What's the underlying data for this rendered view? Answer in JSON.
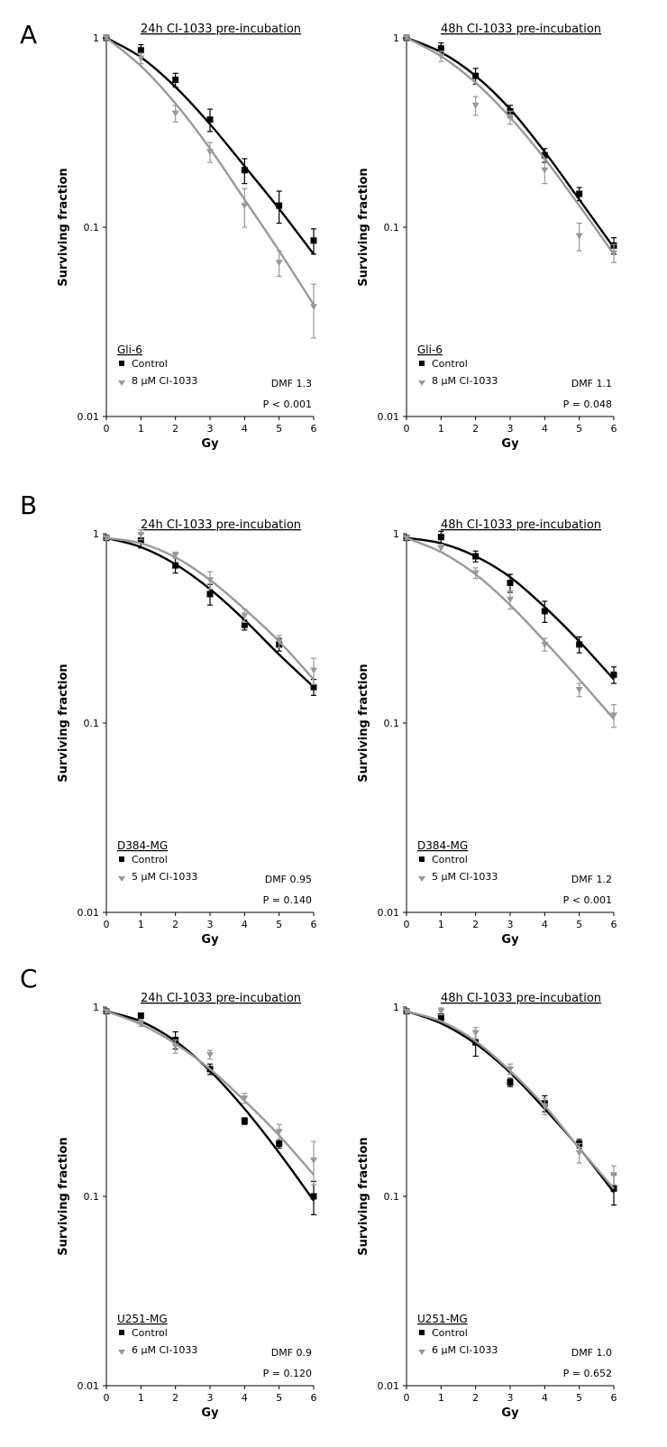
{
  "panels": [
    {
      "letter": "A",
      "y": 30
    },
    {
      "letter": "B",
      "y": 552
    },
    {
      "letter": "C",
      "y": 1077
    }
  ],
  "chart_data": [
    {
      "type": "scatter",
      "panel": "A",
      "title": "24h CI-1033 pre-incubation",
      "xlabel": "Gy",
      "ylabel": "Surviving fraction",
      "xlim": [
        0,
        6
      ],
      "ylim": [
        0.01,
        1
      ],
      "yscale": "log",
      "xticks": [
        "0",
        "1",
        "2",
        "3",
        "4",
        "5",
        "6"
      ],
      "yticks": [
        "1",
        "0.1",
        "0.01"
      ],
      "cell_line": "Gli-6",
      "series": [
        {
          "name": "Control",
          "color": "#000000",
          "marker": "square",
          "x": [
            0,
            1,
            2,
            3,
            4,
            5,
            6
          ],
          "y": [
            1.0,
            0.86,
            0.6,
            0.37,
            0.2,
            0.13,
            0.085
          ],
          "err": [
            0.02,
            0.06,
            0.05,
            0.05,
            0.03,
            0.025,
            0.013
          ],
          "fit": [
            1.0,
            0.79,
            0.55,
            0.35,
            0.21,
            0.125,
            0.072
          ]
        },
        {
          "name": "8 µM CI-1033",
          "color": "#999999",
          "marker": "triangle-down",
          "x": [
            0,
            1,
            2,
            3,
            4,
            5,
            6
          ],
          "y": [
            1.0,
            0.78,
            0.4,
            0.25,
            0.13,
            0.065,
            0.038
          ],
          "err": [
            0.02,
            0.05,
            0.04,
            0.03,
            0.03,
            0.01,
            0.012
          ],
          "fit": [
            1.0,
            0.71,
            0.45,
            0.26,
            0.14,
            0.075,
            0.039
          ]
        }
      ],
      "annotations": [
        "DMF 1.3",
        "P < 0.001"
      ]
    },
    {
      "type": "scatter",
      "panel": "A",
      "title": "48h CI-1033 pre-incubation",
      "xlabel": "Gy",
      "ylabel": "Surviving fraction",
      "xlim": [
        0,
        6
      ],
      "ylim": [
        0.01,
        1
      ],
      "yscale": "log",
      "xticks": [
        "0",
        "1",
        "2",
        "3",
        "4",
        "5",
        "6"
      ],
      "yticks": [
        "1",
        "0.1",
        "0.01"
      ],
      "cell_line": "Gli-6",
      "series": [
        {
          "name": "Control",
          "color": "#000000",
          "marker": "square",
          "x": [
            0,
            1,
            2,
            3,
            4,
            5,
            6
          ],
          "y": [
            1.0,
            0.88,
            0.63,
            0.41,
            0.24,
            0.15,
            0.08
          ],
          "err": [
            0.02,
            0.06,
            0.06,
            0.03,
            0.02,
            0.012,
            0.008
          ],
          "fit": [
            1.0,
            0.84,
            0.63,
            0.42,
            0.25,
            0.14,
            0.078
          ]
        },
        {
          "name": "8 µM CI-1033",
          "color": "#999999",
          "marker": "triangle-down",
          "x": [
            0,
            1,
            2,
            3,
            4,
            5,
            6
          ],
          "y": [
            1.0,
            0.8,
            0.44,
            0.38,
            0.2,
            0.09,
            0.073
          ],
          "err": [
            0.02,
            0.05,
            0.05,
            0.03,
            0.03,
            0.015,
            0.008
          ],
          "fit": [
            1.0,
            0.8,
            0.58,
            0.38,
            0.23,
            0.13,
            0.072
          ]
        }
      ],
      "annotations": [
        "DMF 1.1",
        "P = 0.048"
      ]
    },
    {
      "type": "scatter",
      "panel": "B",
      "title": "24h CI-1033 pre-incubation",
      "xlabel": "Gy",
      "ylabel": "Surviving fraction",
      "xlim": [
        0,
        6
      ],
      "ylim": [
        0.01,
        1
      ],
      "yscale": "log",
      "xticks": [
        "0",
        "1",
        "2",
        "3",
        "4",
        "5",
        "6"
      ],
      "yticks": [
        "1",
        "0.1",
        "0.01"
      ],
      "cell_line": "D384-MG",
      "series": [
        {
          "name": "Control",
          "color": "#000000",
          "marker": "square",
          "x": [
            0,
            1,
            2,
            3,
            4,
            5,
            6
          ],
          "y": [
            0.95,
            0.92,
            0.68,
            0.48,
            0.33,
            0.26,
            0.155
          ],
          "err": [
            0.02,
            0.08,
            0.06,
            0.06,
            0.02,
            0.02,
            0.015
          ],
          "fit": [
            0.95,
            0.85,
            0.69,
            0.51,
            0.35,
            0.23,
            0.155
          ]
        },
        {
          "name": "5 µM CI-1033",
          "color": "#999999",
          "marker": "triangle-down",
          "x": [
            0,
            1,
            2,
            3,
            4,
            5,
            6
          ],
          "y": [
            0.95,
            0.99,
            0.77,
            0.57,
            0.37,
            0.27,
            0.19
          ],
          "err": [
            0.02,
            0.06,
            0.03,
            0.06,
            0.03,
            0.02,
            0.03
          ],
          "fit": [
            0.95,
            0.89,
            0.75,
            0.57,
            0.4,
            0.27,
            0.17
          ]
        }
      ],
      "annotations": [
        "DMF 0.95",
        "P = 0.140"
      ]
    },
    {
      "type": "scatter",
      "panel": "B",
      "title": "48h CI-1033 pre-incubation",
      "xlabel": "Gy",
      "ylabel": "Surviving fraction",
      "xlim": [
        0,
        6
      ],
      "ylim": [
        0.01,
        1
      ],
      "yscale": "log",
      "xticks": [
        "0",
        "1",
        "2",
        "3",
        "4",
        "5",
        "6"
      ],
      "yticks": [
        "1",
        "0.1",
        "0.01"
      ],
      "cell_line": "D384-MG",
      "series": [
        {
          "name": "Control",
          "color": "#000000",
          "marker": "square",
          "x": [
            0,
            1,
            2,
            3,
            4,
            5,
            6
          ],
          "y": [
            0.95,
            0.96,
            0.76,
            0.55,
            0.39,
            0.26,
            0.18
          ],
          "err": [
            0.02,
            0.07,
            0.05,
            0.06,
            0.05,
            0.025,
            0.018
          ],
          "fit": [
            0.95,
            0.89,
            0.76,
            0.59,
            0.41,
            0.27,
            0.17
          ]
        },
        {
          "name": "5 µM CI-1033",
          "color": "#999999",
          "marker": "triangle-down",
          "x": [
            0,
            1,
            2,
            3,
            4,
            5,
            6
          ],
          "y": [
            0.95,
            0.84,
            0.62,
            0.45,
            0.26,
            0.15,
            0.11
          ],
          "err": [
            0.02,
            0.04,
            0.04,
            0.05,
            0.02,
            0.012,
            0.015
          ],
          "fit": [
            0.95,
            0.8,
            0.61,
            0.42,
            0.27,
            0.17,
            0.105
          ]
        }
      ],
      "annotations": [
        "DMF 1.2",
        "P < 0.001"
      ]
    },
    {
      "type": "scatter",
      "panel": "C",
      "title": "24h CI-1033 pre-incubation",
      "xlabel": "Gy",
      "ylabel": "Surviving fraction",
      "xlim": [
        0,
        6
      ],
      "ylim": [
        0.01,
        1
      ],
      "yscale": "log",
      "xticks": [
        "0",
        "1",
        "2",
        "3",
        "4",
        "5",
        "6"
      ],
      "yticks": [
        "1",
        "0.1",
        "0.01"
      ],
      "cell_line": "U251-MG",
      "series": [
        {
          "name": "Control",
          "color": "#000000",
          "marker": "square",
          "x": [
            0,
            1,
            2,
            3,
            4,
            5,
            6
          ],
          "y": [
            0.95,
            0.9,
            0.67,
            0.47,
            0.25,
            0.19,
            0.1
          ],
          "err": [
            0.02,
            0.03,
            0.07,
            0.03,
            0.01,
            0.01,
            0.02
          ],
          "fit": [
            0.95,
            0.84,
            0.66,
            0.46,
            0.29,
            0.17,
            0.095
          ]
        },
        {
          "name": "6 µM CI-1033",
          "color": "#999999",
          "marker": "triangle-down",
          "x": [
            0,
            1,
            2,
            3,
            4,
            5,
            6
          ],
          "y": [
            0.95,
            0.82,
            0.62,
            0.56,
            0.33,
            0.22,
            0.155
          ],
          "err": [
            0.02,
            0.03,
            0.05,
            0.03,
            0.02,
            0.02,
            0.04
          ],
          "fit": [
            0.95,
            0.81,
            0.64,
            0.47,
            0.32,
            0.21,
            0.13
          ]
        }
      ],
      "annotations": [
        "DMF 0.9",
        "P = 0.120"
      ]
    },
    {
      "type": "scatter",
      "panel": "C",
      "title": "48h CI-1033 pre-incubation",
      "xlabel": "Gy",
      "ylabel": "Surviving fraction",
      "xlim": [
        0,
        6
      ],
      "ylim": [
        0.01,
        1
      ],
      "yscale": "log",
      "xticks": [
        "0",
        "1",
        "2",
        "3",
        "4",
        "5",
        "6"
      ],
      "yticks": [
        "1",
        "0.1",
        "0.01"
      ],
      "cell_line": "U251-MG",
      "series": [
        {
          "name": "Control",
          "color": "#000000",
          "marker": "square",
          "x": [
            0,
            1,
            2,
            3,
            4,
            5,
            6
          ],
          "y": [
            0.95,
            0.88,
            0.65,
            0.4,
            0.31,
            0.19,
            0.11
          ],
          "err": [
            0.02,
            0.04,
            0.1,
            0.02,
            0.03,
            0.01,
            0.02
          ],
          "fit": [
            0.95,
            0.82,
            0.64,
            0.45,
            0.29,
            0.18,
            0.105
          ]
        },
        {
          "name": "6 µM CI-1033",
          "color": "#999999",
          "marker": "triangle-down",
          "x": [
            0,
            1,
            2,
            3,
            4,
            5,
            6
          ],
          "y": [
            0.95,
            0.95,
            0.73,
            0.47,
            0.3,
            0.17,
            0.13
          ],
          "err": [
            0.02,
            0.04,
            0.05,
            0.03,
            0.03,
            0.02,
            0.015
          ],
          "fit": [
            0.95,
            0.84,
            0.66,
            0.46,
            0.3,
            0.18,
            0.11
          ]
        }
      ],
      "annotations": [
        "DMF 1.0",
        "P = 0.652"
      ]
    }
  ]
}
